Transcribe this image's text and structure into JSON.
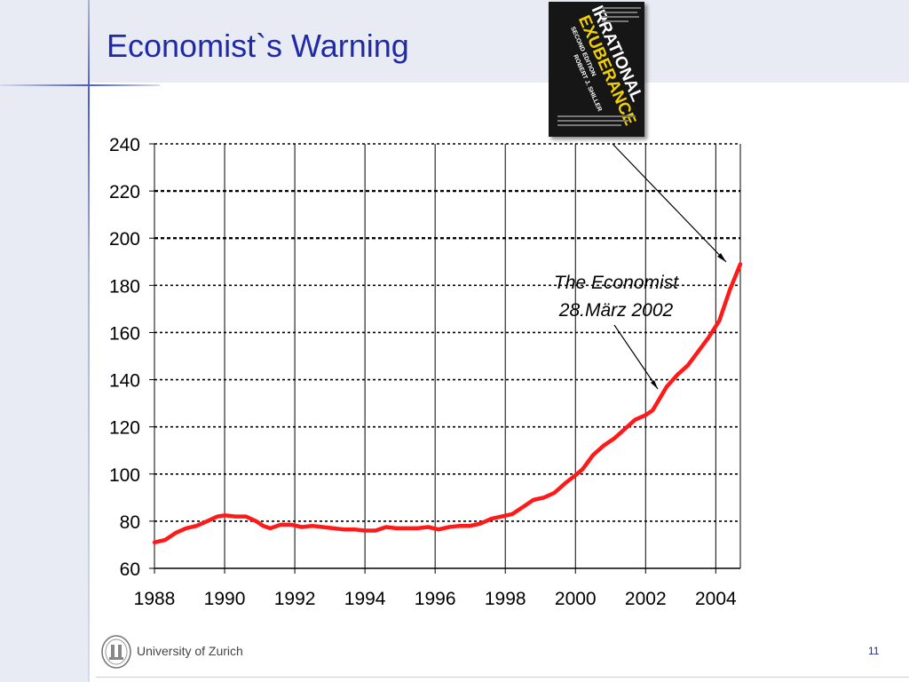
{
  "slide": {
    "title": "Economist`s Warning",
    "page_number": "11",
    "footer": {
      "institution": "University of Zurich"
    }
  },
  "book_cover": {
    "title_line1": "IRRATIONAL",
    "title_line2": "EXUBERANCE",
    "edition": "SECOND EDITION",
    "author": "ROBERT J. SHILLER"
  },
  "annotation": {
    "line1": "The Economist",
    "line2": "28.März 2002"
  },
  "colors": {
    "title": "#1f2aa8",
    "series": "#ff1a1a",
    "band": "#e8ebf3"
  },
  "chart_data": {
    "type": "line",
    "title": "",
    "xlabel": "",
    "ylabel": "",
    "xlim": [
      1988,
      2004.7
    ],
    "ylim": [
      60,
      240
    ],
    "x_ticks": [
      1988,
      1990,
      1992,
      1994,
      1996,
      1998,
      2000,
      2002,
      2004
    ],
    "y_ticks": [
      60,
      80,
      100,
      120,
      140,
      160,
      180,
      200,
      220,
      240
    ],
    "grid": true,
    "legend": "none",
    "series": [
      {
        "points": [
          [
            1988.0,
            71
          ],
          [
            1988.3,
            72
          ],
          [
            1988.6,
            75
          ],
          [
            1988.9,
            77
          ],
          [
            1989.2,
            78
          ],
          [
            1989.5,
            80
          ],
          [
            1989.8,
            82
          ],
          [
            1990.0,
            82.5
          ],
          [
            1990.3,
            82
          ],
          [
            1990.6,
            82
          ],
          [
            1990.9,
            80
          ],
          [
            1991.1,
            78
          ],
          [
            1991.3,
            77
          ],
          [
            1991.6,
            78.5
          ],
          [
            1991.9,
            78.5
          ],
          [
            1992.2,
            77.5
          ],
          [
            1992.5,
            78
          ],
          [
            1992.8,
            77.5
          ],
          [
            1993.1,
            77
          ],
          [
            1993.4,
            76.5
          ],
          [
            1993.7,
            76.5
          ],
          [
            1994.0,
            76
          ],
          [
            1994.3,
            76
          ],
          [
            1994.6,
            77.5
          ],
          [
            1994.9,
            77
          ],
          [
            1995.2,
            77
          ],
          [
            1995.5,
            77
          ],
          [
            1995.8,
            77.5
          ],
          [
            1996.1,
            76.5
          ],
          [
            1996.4,
            77.5
          ],
          [
            1996.7,
            78
          ],
          [
            1997.0,
            78
          ],
          [
            1997.3,
            79
          ],
          [
            1997.6,
            81
          ],
          [
            1997.9,
            82
          ],
          [
            1998.2,
            83
          ],
          [
            1998.5,
            86
          ],
          [
            1998.8,
            89
          ],
          [
            1999.1,
            90
          ],
          [
            1999.4,
            92
          ],
          [
            1999.7,
            96
          ],
          [
            2000.0,
            99.5
          ],
          [
            2000.2,
            102
          ],
          [
            2000.5,
            108
          ],
          [
            2000.8,
            112
          ],
          [
            2001.1,
            115
          ],
          [
            2001.4,
            119
          ],
          [
            2001.7,
            123
          ],
          [
            2002.0,
            125
          ],
          [
            2002.2,
            127
          ],
          [
            2002.4,
            132
          ],
          [
            2002.6,
            137
          ],
          [
            2002.9,
            142
          ],
          [
            2003.2,
            146
          ],
          [
            2003.5,
            152
          ],
          [
            2003.8,
            158
          ],
          [
            2004.1,
            165
          ],
          [
            2004.4,
            178
          ],
          [
            2004.7,
            189
          ]
        ]
      }
    ]
  }
}
